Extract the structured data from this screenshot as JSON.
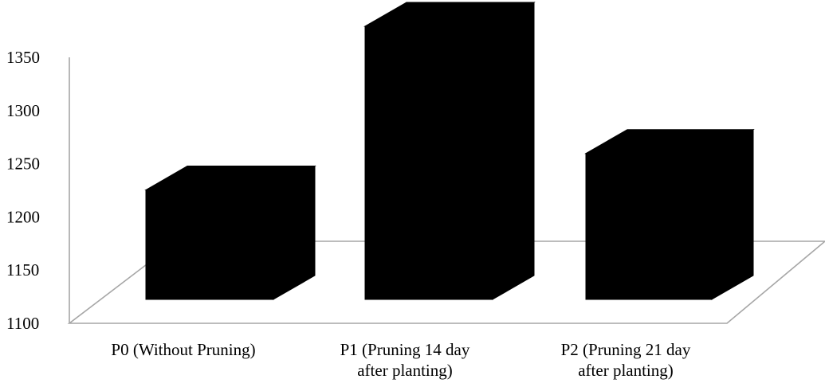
{
  "chart_data": {
    "type": "bar",
    "style": "3d-column",
    "categories": [
      [
        "P0 (Without Pruning)"
      ],
      [
        "P1 (Pruning  14 day",
        "after planting)"
      ],
      [
        "P2 (Pruning 21 day",
        "after planting)"
      ]
    ],
    "values": [
      1205,
      1362,
      1240
    ],
    "bar_color": "#000000",
    "axis_color": "#a6a6a6",
    "ylim": [
      1100,
      1350
    ],
    "yticks": [
      1100,
      1150,
      1200,
      1250,
      1300,
      1350
    ],
    "grid": false,
    "legend": "none",
    "title": "",
    "xlabel": "",
    "ylabel": ""
  }
}
